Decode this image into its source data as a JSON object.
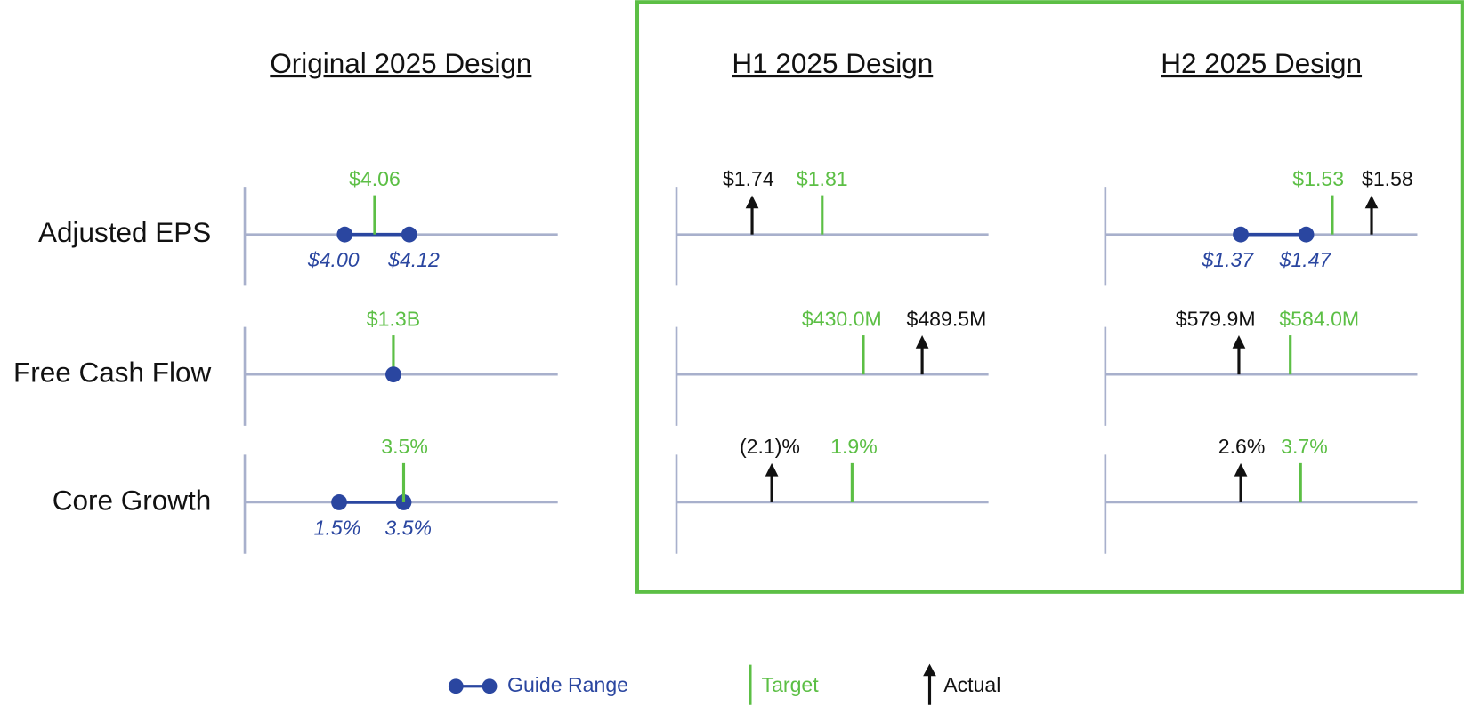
{
  "columns": [
    "Original 2025 Design",
    "H1 2025 Design",
    "H2 2025 Design"
  ],
  "rows": [
    "Adjusted EPS",
    "Free Cash Flow",
    "Core Growth"
  ],
  "cells": [
    [
      {
        "target": "$4.06",
        "guide": [
          "$4.00",
          "$4.12"
        ]
      },
      {
        "actual": "$1.74",
        "target": "$1.81"
      },
      {
        "guide": [
          "$1.37",
          "$1.47"
        ],
        "target": "$1.53",
        "actual": "$1.58"
      }
    ],
    [
      {
        "target": "$1.3B"
      },
      {
        "target": "$430.0M",
        "actual": "$489.5M"
      },
      {
        "actual": "$579.9M",
        "target": "$584.0M"
      }
    ],
    [
      {
        "target": "3.5%",
        "guide": [
          "1.5%",
          "3.5%"
        ]
      },
      {
        "actual": "(2.1)%",
        "target": "1.9%"
      },
      {
        "actual": "2.6%",
        "target": "3.7%"
      }
    ]
  ],
  "legend": {
    "guide": "Guide Range",
    "target": "Target",
    "actual": "Actual"
  }
}
